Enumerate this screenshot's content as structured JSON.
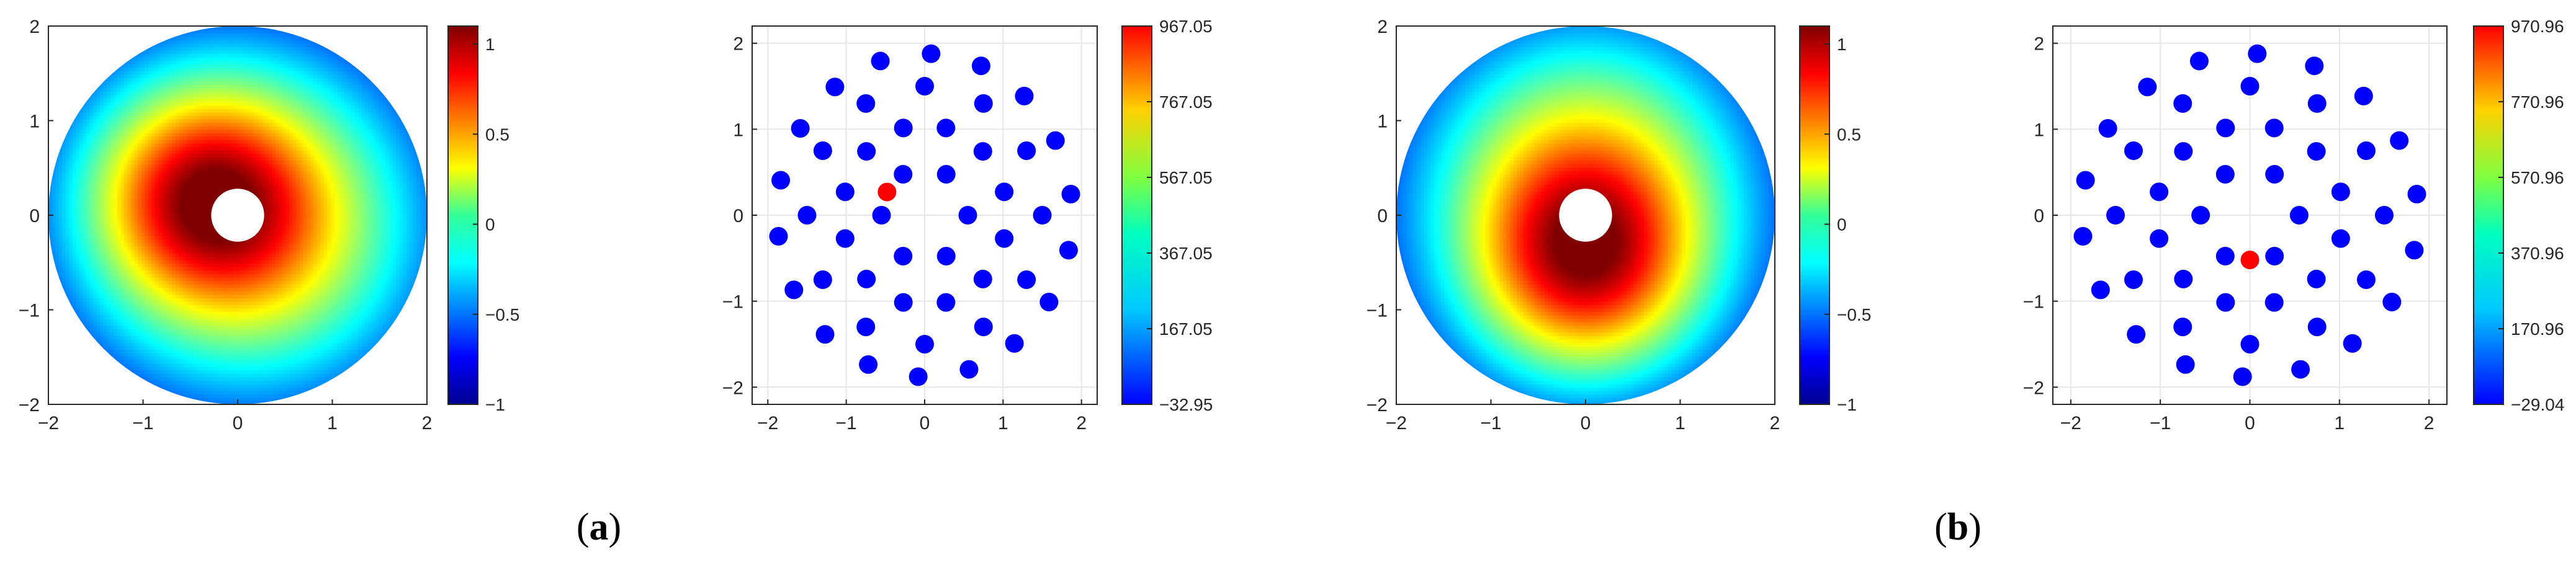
{
  "captions": [
    {
      "open": "(",
      "letter": "a",
      "close": ")"
    },
    {
      "open": "(",
      "letter": "b",
      "close": ")"
    }
  ],
  "chart_data": [
    {
      "type": "heatmap",
      "title": "",
      "xlabel": "",
      "ylabel": "",
      "xlim": [
        -2,
        2
      ],
      "ylim": [
        -2,
        2
      ],
      "xticks": [
        "−2",
        "−1",
        "0",
        "1",
        "2"
      ],
      "yticks": [
        "−2",
        "−1",
        "0",
        "1",
        "2"
      ],
      "domain": {
        "outer_radius": 2,
        "inner_radius": 0.28
      },
      "peak": {
        "x": -0.4,
        "y": 0.2
      },
      "clim": [
        -1,
        1.1
      ],
      "colorbar_ticks": [
        "−1",
        "−0.5",
        "0",
        "0.5",
        "1"
      ],
      "colormap": "jet",
      "grid": false
    },
    {
      "type": "scatter",
      "title": "",
      "xlabel": "",
      "ylabel": "",
      "xlim": [
        -2.2,
        2.2
      ],
      "ylim": [
        -2.2,
        2.2
      ],
      "xticks": [
        "−2",
        "−1",
        "0",
        "1",
        "2"
      ],
      "yticks": [
        "−2",
        "−1",
        "0",
        "1",
        "2"
      ],
      "rings": [
        {
          "radius": 0.55,
          "count": 6,
          "phase_deg": 0
        },
        {
          "radius": 1.05,
          "count": 12,
          "phase_deg": 15
        },
        {
          "radius": 1.5,
          "count": 12,
          "phase_deg": 0
        },
        {
          "radius": 1.88,
          "count": 18,
          "phase_deg": 7.5
        }
      ],
      "highlight": {
        "x": -0.48,
        "y": 0.27
      },
      "point_color": "#0000ff",
      "highlight_color": "#ff0000",
      "clim": [
        -32.95,
        967.05
      ],
      "colorbar_ticks": [
        "−32.95",
        "167.05",
        "367.05",
        "567.05",
        "767.05",
        "967.05"
      ],
      "colormap": "jet",
      "grid": true
    },
    {
      "type": "heatmap",
      "title": "",
      "xlabel": "",
      "ylabel": "",
      "xlim": [
        -2,
        2
      ],
      "ylim": [
        -2,
        2
      ],
      "xticks": [
        "−2",
        "−1",
        "0",
        "1",
        "2"
      ],
      "yticks": [
        "−2",
        "−1",
        "0",
        "1",
        "2"
      ],
      "domain": {
        "outer_radius": 2,
        "inner_radius": 0.28
      },
      "peak": {
        "x": 0,
        "y": -0.5
      },
      "clim": [
        -1,
        1.1
      ],
      "colorbar_ticks": [
        "−1",
        "−0.5",
        "0",
        "0.5",
        "1"
      ],
      "colormap": "jet",
      "grid": false
    },
    {
      "type": "scatter",
      "title": "",
      "xlabel": "",
      "ylabel": "",
      "xlim": [
        -2.2,
        2.2
      ],
      "ylim": [
        -2.2,
        2.2
      ],
      "xticks": [
        "−2",
        "−1",
        "0",
        "1",
        "2"
      ],
      "yticks": [
        "−2",
        "−1",
        "0",
        "1",
        "2"
      ],
      "rings": [
        {
          "radius": 0.55,
          "count": 6,
          "phase_deg": 0
        },
        {
          "radius": 1.05,
          "count": 12,
          "phase_deg": 15
        },
        {
          "radius": 1.5,
          "count": 12,
          "phase_deg": 0
        },
        {
          "radius": 1.88,
          "count": 18,
          "phase_deg": 7.5
        }
      ],
      "highlight": {
        "x": 0,
        "y": -0.52
      },
      "point_color": "#0000ff",
      "highlight_color": "#ff0000",
      "clim": [
        -29.04,
        970.96
      ],
      "colorbar_ticks": [
        "−29.04",
        "170.96",
        "370.96",
        "570.96",
        "770.96",
        "970.96"
      ],
      "colormap": "jet",
      "grid": true
    }
  ]
}
